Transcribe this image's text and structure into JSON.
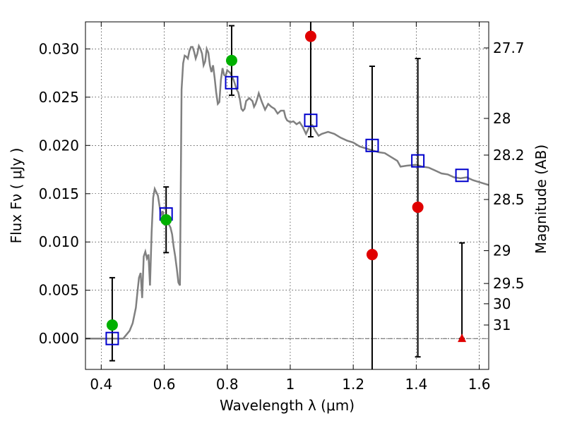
{
  "chart_data": {
    "type": "scatter",
    "xlabel": "Wavelength  λ (μm)",
    "ylabel": "Flux  Fν  ( μJy )",
    "ylabel_right": "Magnitude (AB)",
    "xlim": [
      0.35,
      1.63
    ],
    "ylim": [
      -0.0032,
      0.0328
    ],
    "x_ticks": [
      0.4,
      0.6,
      0.8,
      1.0,
      1.2,
      1.4,
      1.6
    ],
    "x_tick_labels": [
      "0.4",
      "0.6",
      "0.8",
      "1",
      "1.2",
      "1.4",
      "1.6"
    ],
    "y_ticks": [
      0.0,
      0.005,
      0.01,
      0.015,
      0.02,
      0.025,
      0.03
    ],
    "y_tick_labels": [
      "0.000",
      "0.005",
      "0.010",
      "0.015",
      "0.020",
      "0.025",
      "0.030"
    ],
    "right_ticks": [
      {
        "label": "27.7",
        "flux": 0.0301
      },
      {
        "label": "28",
        "flux": 0.0228
      },
      {
        "label": "28.2",
        "flux": 0.019
      },
      {
        "label": "28.5",
        "flux": 0.0144
      },
      {
        "label": "29",
        "flux": 0.0091
      },
      {
        "label": "29.5",
        "flux": 0.0057
      },
      {
        "label": "30",
        "flux": 0.0036
      },
      {
        "label": "31",
        "flux": 0.0014
      }
    ],
    "grid": true,
    "colors": {
      "template": "#808080",
      "model": "#0000cc",
      "green": "#00b000",
      "red": "#e00000",
      "errorbar": "#000000",
      "zero_line": "#000000"
    },
    "template_spectrum": [
      [
        0.35,
        0.0
      ],
      [
        0.47,
        0.0
      ],
      [
        0.49,
        0.0008
      ],
      [
        0.5,
        0.0016
      ],
      [
        0.51,
        0.0032
      ],
      [
        0.515,
        0.0048
      ],
      [
        0.52,
        0.0063
      ],
      [
        0.525,
        0.0068
      ],
      [
        0.53,
        0.0042
      ],
      [
        0.535,
        0.0085
      ],
      [
        0.54,
        0.009
      ],
      [
        0.545,
        0.0083
      ],
      [
        0.55,
        0.0087
      ],
      [
        0.555,
        0.0055
      ],
      [
        0.56,
        0.011
      ],
      [
        0.565,
        0.0146
      ],
      [
        0.57,
        0.0155
      ],
      [
        0.58,
        0.0148
      ],
      [
        0.59,
        0.0127
      ],
      [
        0.595,
        0.0132
      ],
      [
        0.6,
        0.0123
      ],
      [
        0.61,
        0.0125
      ],
      [
        0.615,
        0.0118
      ],
      [
        0.62,
        0.0115
      ],
      [
        0.625,
        0.0108
      ],
      [
        0.63,
        0.0095
      ],
      [
        0.635,
        0.0085
      ],
      [
        0.64,
        0.0072
      ],
      [
        0.645,
        0.0058
      ],
      [
        0.65,
        0.0055
      ],
      [
        0.655,
        0.0258
      ],
      [
        0.66,
        0.0285
      ],
      [
        0.665,
        0.0293
      ],
      [
        0.67,
        0.0292
      ],
      [
        0.675,
        0.029
      ],
      [
        0.68,
        0.0298
      ],
      [
        0.685,
        0.0302
      ],
      [
        0.69,
        0.0302
      ],
      [
        0.695,
        0.0297
      ],
      [
        0.7,
        0.029
      ],
      [
        0.705,
        0.0295
      ],
      [
        0.71,
        0.0303
      ],
      [
        0.715,
        0.03
      ],
      [
        0.72,
        0.0295
      ],
      [
        0.725,
        0.0283
      ],
      [
        0.73,
        0.0287
      ],
      [
        0.735,
        0.03
      ],
      [
        0.74,
        0.0296
      ],
      [
        0.745,
        0.0283
      ],
      [
        0.75,
        0.0276
      ],
      [
        0.755,
        0.0283
      ],
      [
        0.76,
        0.027
      ],
      [
        0.765,
        0.0255
      ],
      [
        0.77,
        0.0243
      ],
      [
        0.775,
        0.0245
      ],
      [
        0.78,
        0.0268
      ],
      [
        0.785,
        0.028
      ],
      [
        0.79,
        0.0273
      ],
      [
        0.795,
        0.0272
      ],
      [
        0.8,
        0.0278
      ],
      [
        0.81,
        0.0275
      ],
      [
        0.82,
        0.0268
      ],
      [
        0.83,
        0.0258
      ],
      [
        0.835,
        0.0255
      ],
      [
        0.84,
        0.0248
      ],
      [
        0.845,
        0.0238
      ],
      [
        0.85,
        0.0236
      ],
      [
        0.855,
        0.0238
      ],
      [
        0.86,
        0.0246
      ],
      [
        0.87,
        0.0249
      ],
      [
        0.88,
        0.0246
      ],
      [
        0.885,
        0.024
      ],
      [
        0.89,
        0.0243
      ],
      [
        0.895,
        0.0248
      ],
      [
        0.9,
        0.0254
      ],
      [
        0.91,
        0.0245
      ],
      [
        0.92,
        0.0237
      ],
      [
        0.93,
        0.0243
      ],
      [
        0.94,
        0.024
      ],
      [
        0.95,
        0.0238
      ],
      [
        0.96,
        0.0233
      ],
      [
        0.97,
        0.0236
      ],
      [
        0.98,
        0.0236
      ],
      [
        0.985,
        0.0229
      ],
      [
        0.99,
        0.0226
      ],
      [
        1.0,
        0.0224
      ],
      [
        1.01,
        0.0225
      ],
      [
        1.02,
        0.0222
      ],
      [
        1.03,
        0.0224
      ],
      [
        1.04,
        0.0219
      ],
      [
        1.05,
        0.0212
      ],
      [
        1.06,
        0.0219
      ],
      [
        1.07,
        0.0221
      ],
      [
        1.08,
        0.0215
      ],
      [
        1.09,
        0.021
      ],
      [
        1.1,
        0.0212
      ],
      [
        1.12,
        0.0214
      ],
      [
        1.14,
        0.0212
      ],
      [
        1.16,
        0.0208
      ],
      [
        1.18,
        0.0205
      ],
      [
        1.2,
        0.0203
      ],
      [
        1.22,
        0.0199
      ],
      [
        1.25,
        0.0196
      ],
      [
        1.28,
        0.0193
      ],
      [
        1.3,
        0.0192
      ],
      [
        1.32,
        0.0188
      ],
      [
        1.34,
        0.0184
      ],
      [
        1.35,
        0.0178
      ],
      [
        1.37,
        0.0179
      ],
      [
        1.4,
        0.018
      ],
      [
        1.42,
        0.0178
      ],
      [
        1.44,
        0.0177
      ],
      [
        1.46,
        0.0174
      ],
      [
        1.48,
        0.0171
      ],
      [
        1.5,
        0.017
      ],
      [
        1.52,
        0.0167
      ],
      [
        1.54,
        0.0166
      ],
      [
        1.56,
        0.0167
      ],
      [
        1.58,
        0.0164
      ],
      [
        1.6,
        0.0162
      ],
      [
        1.63,
        0.0159
      ]
    ],
    "model_points": [
      {
        "x": 0.435,
        "y": 0.0
      },
      {
        "x": 0.606,
        "y": 0.0129
      },
      {
        "x": 0.814,
        "y": 0.0265
      },
      {
        "x": 1.065,
        "y": 0.0226
      },
      {
        "x": 1.26,
        "y": 0.02
      },
      {
        "x": 1.405,
        "y": 0.0184
      },
      {
        "x": 1.545,
        "y": 0.0169
      }
    ],
    "green_points": [
      {
        "x": 0.435,
        "y": 0.0014,
        "err_low": 0.0037,
        "err_high": 0.0049
      },
      {
        "x": 0.606,
        "y": 0.0123,
        "err_low": 0.0034,
        "err_high": 0.0034
      },
      {
        "x": 0.814,
        "y": 0.0288,
        "err_low": 0.0036,
        "err_high": 0.0036
      }
    ],
    "red_points": [
      {
        "x": 1.065,
        "y": 0.0313,
        "err_low": 0.0104,
        "err_high": 0.0104
      },
      {
        "x": 1.26,
        "y": 0.0087,
        "err_low": 0.0195,
        "err_high": 0.0195
      },
      {
        "x": 1.405,
        "y": 0.0136,
        "err_low": 0.0155,
        "err_high": 0.0154
      }
    ],
    "upper_limits": [
      {
        "x": 1.545,
        "y": 0.0,
        "err_high": 0.0099
      }
    ]
  }
}
